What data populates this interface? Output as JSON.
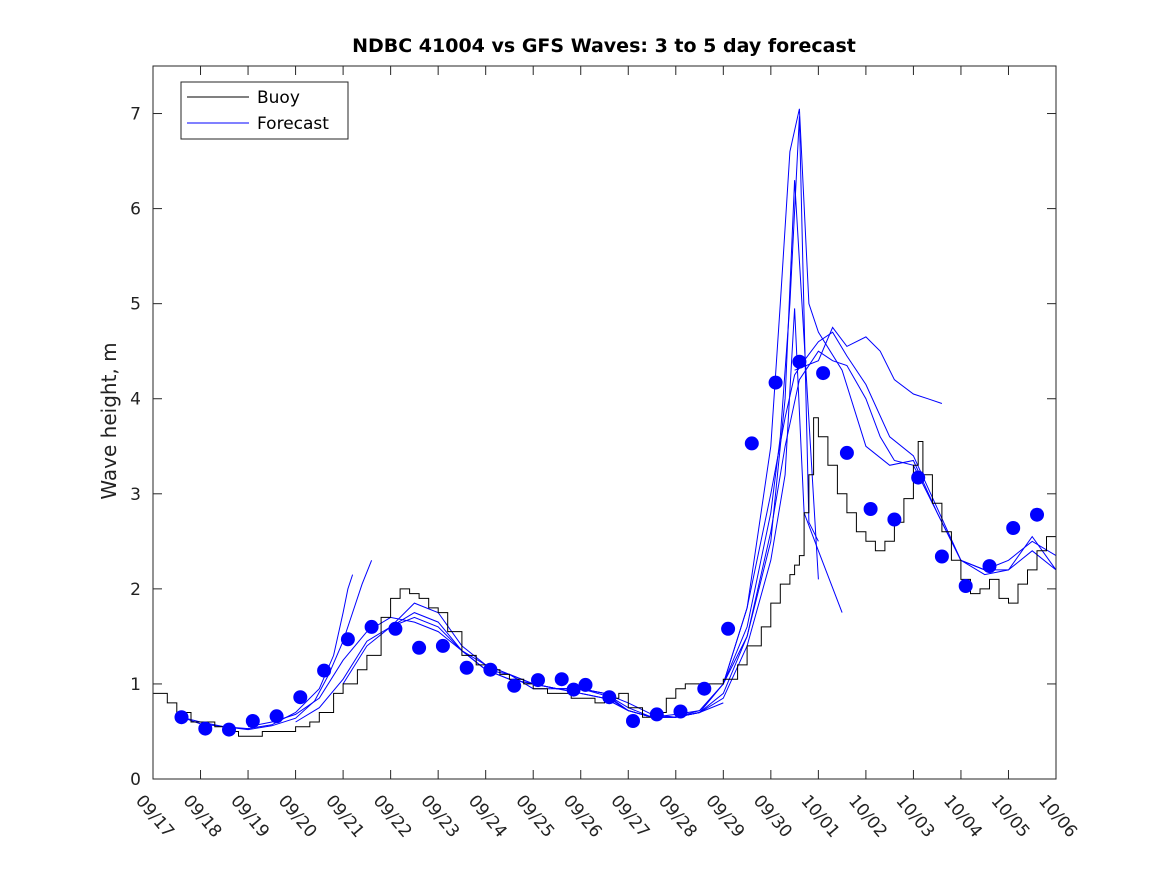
{
  "chart_data": {
    "type": "line",
    "title": "NDBC 41004 vs GFS Waves: 3 to 5 day forecast",
    "xlabel": "",
    "ylabel": "Wave height, m",
    "xlim": [
      0,
      19
    ],
    "ylim": [
      0,
      7.5
    ],
    "x_unit": "days since 09/17",
    "xticks": [
      0,
      1,
      2,
      3,
      4,
      5,
      6,
      7,
      8,
      9,
      10,
      11,
      12,
      13,
      14,
      15,
      16,
      17,
      18,
      19
    ],
    "xtick_labels": [
      "09/17",
      "09/18",
      "09/19",
      "09/20",
      "09/21",
      "09/22",
      "09/23",
      "09/24",
      "09/25",
      "09/26",
      "09/27",
      "09/28",
      "09/29",
      "09/30",
      "10/01",
      "10/02",
      "10/03",
      "10/04",
      "10/05",
      "10/06"
    ],
    "yticks": [
      0,
      1,
      2,
      3,
      4,
      5,
      6,
      7
    ],
    "ytick_labels": [
      "0",
      "1",
      "2",
      "3",
      "4",
      "5",
      "6",
      "7"
    ],
    "legend": {
      "position": "top-left",
      "entries": [
        {
          "label": "Buoy",
          "color": "#000000"
        },
        {
          "label": "Forecast",
          "color": "#0000ff"
        }
      ]
    },
    "colors": {
      "buoy": "#000000",
      "forecast": "#0000ff",
      "marker": "#0000ff"
    },
    "buoy": {
      "x": [
        0,
        0.3,
        0.5,
        0.8,
        1.0,
        1.3,
        1.5,
        1.8,
        2.0,
        2.3,
        2.5,
        2.8,
        3.0,
        3.3,
        3.5,
        3.8,
        4.0,
        4.3,
        4.5,
        4.8,
        5.0,
        5.2,
        5.4,
        5.6,
        5.8,
        6.0,
        6.2,
        6.5,
        6.8,
        7.0,
        7.3,
        7.5,
        7.8,
        8.0,
        8.3,
        8.5,
        8.8,
        9.0,
        9.3,
        9.5,
        9.8,
        10.0,
        10.3,
        10.5,
        10.8,
        11.0,
        11.2,
        11.5,
        11.8,
        12.0,
        12.3,
        12.5,
        12.8,
        13.0,
        13.2,
        13.4,
        13.5,
        13.6,
        13.7,
        13.8,
        13.9,
        14.0,
        14.2,
        14.4,
        14.6,
        14.8,
        15.0,
        15.2,
        15.4,
        15.6,
        15.8,
        16.0,
        16.1,
        16.2,
        16.4,
        16.6,
        16.8,
        17.0,
        17.2,
        17.4,
        17.6,
        17.8,
        18.0,
        18.2,
        18.4,
        18.6,
        18.8,
        19.0
      ],
      "y": [
        0.9,
        0.8,
        0.7,
        0.6,
        0.6,
        0.55,
        0.5,
        0.45,
        0.45,
        0.5,
        0.5,
        0.5,
        0.55,
        0.6,
        0.7,
        0.9,
        1.0,
        1.15,
        1.3,
        1.7,
        1.9,
        2.0,
        1.95,
        1.9,
        1.8,
        1.75,
        1.55,
        1.3,
        1.2,
        1.15,
        1.1,
        1.05,
        1.0,
        0.95,
        0.9,
        0.9,
        0.85,
        0.85,
        0.8,
        0.85,
        0.9,
        0.75,
        0.65,
        0.7,
        0.85,
        0.95,
        1.0,
        1.0,
        1.0,
        1.05,
        1.2,
        1.4,
        1.6,
        1.85,
        2.05,
        2.15,
        2.25,
        2.35,
        2.8,
        3.2,
        3.8,
        3.6,
        3.3,
        3.0,
        2.8,
        2.6,
        2.5,
        2.4,
        2.5,
        2.7,
        2.95,
        3.3,
        3.55,
        3.2,
        2.9,
        2.6,
        2.3,
        2.1,
        1.95,
        2.0,
        2.1,
        1.9,
        1.85,
        2.05,
        2.2,
        2.4,
        2.55,
        2.5
      ]
    },
    "forecasts": [
      {
        "x": [
          0.6,
          1.0,
          1.5,
          2.0,
          2.5,
          3.0,
          3.4,
          3.7,
          4.0,
          4.2,
          4.4,
          4.6
        ],
        "y": [
          0.65,
          0.58,
          0.55,
          0.52,
          0.56,
          0.64,
          0.82,
          1.1,
          1.45,
          1.75,
          2.05,
          2.3
        ]
      },
      {
        "x": [
          0.6,
          1.0,
          1.5,
          2.0,
          2.5,
          3.0,
          3.5,
          3.8,
          4.0,
          4.1,
          4.2
        ],
        "y": [
          0.65,
          0.6,
          0.55,
          0.53,
          0.57,
          0.7,
          0.95,
          1.3,
          1.75,
          2.0,
          2.15
        ]
      },
      {
        "x": [
          2.0,
          2.5,
          3.0,
          3.5,
          4.0,
          4.5,
          5.0,
          5.5,
          6.0,
          6.5,
          7.0,
          7.5,
          8.0,
          8.5,
          9.0,
          9.5,
          10.0,
          10.5,
          11.0,
          11.5,
          12.0
        ],
        "y": [
          0.55,
          0.6,
          0.68,
          0.85,
          1.25,
          1.55,
          1.7,
          1.65,
          1.55,
          1.35,
          1.15,
          1.05,
          1.0,
          0.95,
          0.95,
          0.9,
          0.72,
          0.65,
          0.65,
          0.7,
          0.8
        ]
      },
      {
        "x": [
          3.0,
          3.5,
          4.0,
          4.5,
          5.0,
          5.5,
          6.0,
          6.5,
          7.0,
          7.5,
          8.0,
          8.5,
          9.0,
          9.5,
          10.0,
          10.5,
          11.0,
          11.5,
          12.0,
          12.5,
          13.0,
          13.3,
          13.5,
          14.0
        ],
        "y": [
          0.6,
          0.75,
          1.05,
          1.45,
          1.6,
          1.85,
          1.75,
          1.4,
          1.2,
          1.1,
          0.95,
          0.95,
          0.95,
          0.88,
          0.72,
          0.65,
          0.65,
          0.7,
          0.9,
          1.5,
          2.5,
          4.0,
          6.3,
          2.1
        ]
      },
      {
        "x": [
          4.0,
          4.5,
          5.0,
          5.5,
          6.0,
          6.5,
          7.0,
          7.5,
          8.0,
          8.5,
          9.0,
          9.5,
          10.0,
          10.5,
          11.0,
          11.5,
          12.0,
          12.5,
          13.0,
          13.3,
          13.5,
          13.7,
          14.0,
          14.5
        ],
        "y": [
          1.0,
          1.4,
          1.6,
          1.75,
          1.65,
          1.35,
          1.2,
          1.1,
          1.0,
          0.95,
          0.95,
          0.9,
          0.8,
          0.68,
          0.65,
          0.7,
          0.85,
          1.4,
          2.3,
          3.2,
          4.95,
          2.8,
          2.4,
          1.75
        ]
      },
      {
        "x": [
          5.0,
          5.5,
          6.0,
          6.5,
          7.0,
          7.5,
          8.0,
          8.5,
          9.0,
          9.5,
          10.0,
          10.5,
          11.0,
          11.5,
          12.0,
          12.5,
          13.0,
          13.2,
          13.4,
          13.6,
          13.8,
          14.0
        ],
        "y": [
          1.6,
          1.7,
          1.6,
          1.35,
          1.15,
          1.05,
          1.0,
          0.95,
          0.9,
          0.85,
          0.72,
          0.65,
          0.65,
          0.7,
          1.0,
          1.6,
          2.8,
          3.6,
          5.0,
          6.97,
          2.7,
          2.5
        ]
      },
      {
        "x": [
          7.0,
          7.5,
          8.0,
          8.5,
          9.0,
          9.5,
          10.0,
          10.5,
          11.0,
          11.5,
          12.0,
          12.5,
          13.0,
          13.2,
          13.4,
          13.6,
          13.8,
          14.0,
          14.5,
          15.0,
          15.5,
          16.0,
          16.5,
          17.0,
          17.5,
          18.0,
          18.5,
          19.0
        ],
        "y": [
          1.15,
          1.1,
          1.0,
          0.95,
          0.95,
          0.9,
          0.75,
          0.65,
          0.65,
          0.72,
          1.0,
          1.8,
          3.5,
          5.0,
          6.6,
          7.05,
          5.0,
          4.7,
          4.3,
          3.5,
          3.3,
          3.35,
          2.8,
          2.3,
          2.2,
          2.3,
          2.5,
          2.35
        ]
      },
      {
        "x": [
          9.0,
          9.5,
          10.0,
          10.5,
          11.0,
          11.5,
          12.0,
          12.5,
          13.0,
          13.3,
          13.5,
          13.7,
          14.0,
          14.3,
          14.6,
          15.0,
          15.5,
          16.0,
          16.5,
          17.0,
          17.5,
          18.0,
          18.5,
          19.0
        ],
        "y": [
          0.9,
          0.85,
          0.72,
          0.65,
          0.68,
          0.72,
          1.0,
          1.8,
          3.0,
          3.8,
          4.25,
          4.4,
          4.6,
          4.7,
          4.45,
          4.15,
          3.6,
          3.4,
          2.85,
          2.3,
          2.15,
          2.2,
          2.55,
          2.2
        ]
      },
      {
        "x": [
          12.0,
          12.5,
          13.0,
          13.3,
          13.6,
          14.0,
          14.3,
          14.6,
          15.0,
          15.3,
          15.6,
          16.0,
          16.5,
          17.0,
          17.5,
          18.0,
          18.5,
          19.0
        ],
        "y": [
          1.0,
          1.5,
          2.6,
          3.5,
          4.2,
          4.5,
          4.4,
          4.35,
          4.0,
          3.6,
          3.35,
          3.3,
          2.8,
          2.3,
          2.2,
          2.2,
          2.4,
          2.2
        ]
      },
      {
        "x": [
          13.5,
          14.0,
          14.3,
          14.6,
          15.0,
          15.3,
          15.6,
          16.0,
          16.3,
          16.6
        ],
        "y": [
          4.3,
          4.4,
          4.75,
          4.55,
          4.65,
          4.5,
          4.2,
          4.05,
          4.0,
          3.95
        ]
      }
    ],
    "markers": {
      "x": [
        0.6,
        1.1,
        1.6,
        2.1,
        2.6,
        3.1,
        3.6,
        4.1,
        4.6,
        5.1,
        5.6,
        6.1,
        6.6,
        7.1,
        7.6,
        8.1,
        8.6,
        8.85,
        9.1,
        9.6,
        10.1,
        10.6,
        11.1,
        11.6,
        12.1,
        12.6,
        13.1,
        13.6,
        14.1,
        14.6,
        15.1,
        15.6,
        16.1,
        16.6,
        17.1,
        17.6,
        18.1,
        18.6
      ],
      "y": [
        0.65,
        0.53,
        0.52,
        0.61,
        0.66,
        0.86,
        1.14,
        1.47,
        1.6,
        1.58,
        1.38,
        1.4,
        1.17,
        1.15,
        0.98,
        1.04,
        1.05,
        0.94,
        0.99,
        0.86,
        0.61,
        0.68,
        0.71,
        0.95,
        1.58,
        3.53,
        4.17,
        4.39,
        4.27,
        3.43,
        2.84,
        2.73,
        3.17,
        2.34,
        2.03,
        2.24,
        2.64,
        2.78
      ]
    }
  }
}
